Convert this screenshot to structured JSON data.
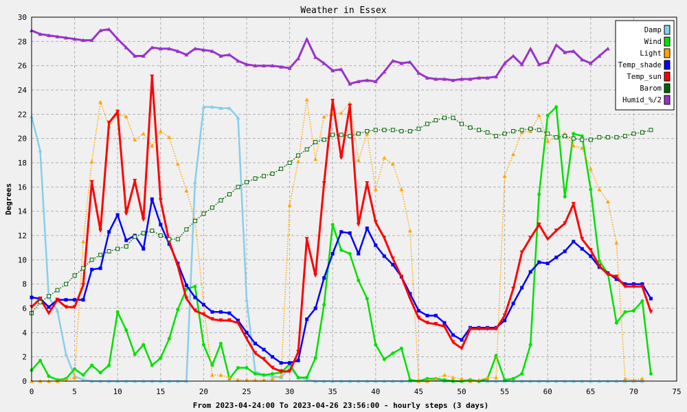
{
  "chart_data": {
    "type": "line",
    "title": "Weather in Essex",
    "xlabel": "From 2023-04-24:00 To 2023-04-26 23:56:00 - hourly steps (3 days)",
    "ylabel": "Degrees",
    "xlim": [
      0,
      75
    ],
    "ylim": [
      0,
      30
    ],
    "x_ticks": [
      "0",
      "5",
      "10",
      "15",
      "20",
      "25",
      "30",
      "35",
      "40",
      "45",
      "50",
      "55",
      "60",
      "65",
      "70",
      "75"
    ],
    "y_ticks": [
      "0",
      "2",
      "4",
      "6",
      "8",
      "10",
      "12",
      "14",
      "16",
      "18",
      "20",
      "22",
      "24",
      "26",
      "28",
      "30"
    ],
    "grid": true,
    "legend_position": "top-right",
    "series": [
      {
        "name": "Damp",
        "color": "#87ceeb",
        "marker": "triangle",
        "style": "solid",
        "width": 2.5,
        "values": [
          21.8,
          19,
          6.9,
          5.8,
          2.2,
          0.4,
          0.1,
          0,
          0,
          0,
          0,
          0,
          0,
          0,
          0,
          0,
          0,
          0,
          0,
          16.4,
          22.6,
          22.6,
          22.5,
          22.5,
          21.7,
          6.7,
          0.8,
          0.5,
          0.4,
          0.3,
          1.1,
          0.3,
          0.1,
          0,
          0,
          0,
          0,
          0,
          0,
          0,
          0,
          0,
          0,
          0,
          0,
          0,
          0,
          0.1,
          0,
          0,
          0,
          0.1,
          0,
          0,
          0,
          0,
          0,
          0,
          0,
          0,
          0,
          0,
          0,
          0,
          0,
          0,
          0,
          0,
          0,
          0,
          0,
          0
        ]
      },
      {
        "name": "Wind",
        "color": "#00e000",
        "marker": "circle",
        "style": "solid",
        "width": 2.5,
        "values": [
          0.9,
          1.7,
          0.4,
          0.1,
          0.2,
          1,
          0.5,
          1.3,
          0.7,
          1.3,
          5.7,
          4.2,
          2.2,
          3,
          1.3,
          1.9,
          3.5,
          5.9,
          7.6,
          7.8,
          3,
          1.3,
          3.1,
          0.2,
          1.1,
          1.1,
          0.6,
          0.5,
          0.6,
          0.7,
          1.4,
          0.3,
          0.3,
          1.9,
          6.3,
          12.9,
          10.8,
          10.5,
          8.3,
          6.8,
          3,
          1.8,
          2.3,
          2.7,
          0.1,
          0,
          0.2,
          0.2,
          0.1,
          0,
          0,
          0.1,
          0,
          0.2,
          2.1,
          0.1,
          0.2,
          0.6,
          3,
          15.4,
          21.9,
          22.6,
          15.2,
          20.4,
          20.2,
          15.8,
          9.9,
          8.9,
          4.8,
          5.7,
          5.8,
          6.6,
          0.6
        ]
      },
      {
        "name": "Light",
        "color": "#ffa500",
        "marker": "triangle",
        "style": "dotted",
        "width": 1.5,
        "values": [
          0,
          0,
          0,
          0,
          0.1,
          0.3,
          11.5,
          18.1,
          23,
          21,
          22,
          21.8,
          19.9,
          20.4,
          19.4,
          20.6,
          20.1,
          17.9,
          15.7,
          13.3,
          6.3,
          0.5,
          0.5,
          0.3,
          0.1,
          0.1,
          0.1,
          0.1,
          0.2,
          0.4,
          14.5,
          18.1,
          23.2,
          18.3,
          21.8,
          22,
          22.1,
          22.9,
          18.2,
          20.4,
          15.8,
          18.4,
          17.9,
          15.8,
          12.4,
          0,
          0,
          0.2,
          0.5,
          0.3,
          0.2,
          0,
          0.1,
          0.3,
          0.3,
          16.9,
          18.7,
          20.5,
          20.6,
          21.9,
          19.8,
          20.1,
          20.4,
          19.4,
          19.2,
          17.5,
          15.8,
          14.8,
          11.4,
          0.2,
          0.1,
          0.2
        ]
      },
      {
        "name": "Temp_shade",
        "color": "#0000ff",
        "marker": "square",
        "style": "solid",
        "width": 2.5,
        "values": [
          6.9,
          6.8,
          6.1,
          6.7,
          6.7,
          6.7,
          6.7,
          9.2,
          9.3,
          12.3,
          13.7,
          11.6,
          12,
          10.9,
          15,
          12.9,
          11.3,
          9.7,
          7.9,
          6.9,
          6.3,
          5.7,
          5.7,
          5.6,
          5,
          4,
          3.1,
          2.6,
          2,
          1.5,
          1.5,
          1.7,
          5.1,
          6,
          8.5,
          10.5,
          12.3,
          12.2,
          10.5,
          12.6,
          11.2,
          10.3,
          9.6,
          8.6,
          7.2,
          5.8,
          5.4,
          5.4,
          4.8,
          3.8,
          3.4,
          4.4,
          4.4,
          4.4,
          4.4,
          5,
          6.4,
          7.7,
          9,
          9.8,
          9.7,
          10.2,
          10.7,
          11.5,
          10.9,
          10.3,
          9.4,
          8.9,
          8.4,
          8,
          8,
          8,
          6.8
        ]
      },
      {
        "name": "Temp_sun",
        "color": "#ff0000",
        "marker": "triangle-down",
        "style": "solid",
        "width": 3,
        "values": [
          6.1,
          6.8,
          5.6,
          6.7,
          6.1,
          6.1,
          7.9,
          16.4,
          12.4,
          21.3,
          22.2,
          13.8,
          16.5,
          13.3,
          25.1,
          14.9,
          11.5,
          9.5,
          6.8,
          5.8,
          5.5,
          5.1,
          5,
          5,
          4.8,
          3.5,
          2.3,
          1.8,
          1.1,
          0.8,
          0.8,
          2.4,
          11.7,
          8.7,
          16.3,
          23.1,
          18.4,
          22.7,
          12.9,
          16.3,
          13.1,
          11.8,
          10.1,
          8.6,
          6.8,
          5.2,
          4.8,
          4.7,
          4.5,
          3.2,
          2.7,
          4.3,
          4.3,
          4.3,
          4.3,
          5.4,
          7.6,
          10.6,
          11.8,
          12.9,
          11.7,
          12.4,
          13,
          14.6,
          11.7,
          10.8,
          9.5,
          8.8,
          8.6,
          7.8,
          7.8,
          7.8,
          5.7
        ]
      },
      {
        "name": "Barom",
        "color": "#006400",
        "marker": "open-square",
        "style": "dotted",
        "width": 1.5,
        "values": [
          5.6,
          6.5,
          7,
          7.5,
          8,
          8.7,
          9.3,
          10,
          10.4,
          10.7,
          10.9,
          11.1,
          11.9,
          12.2,
          12.4,
          12,
          11.7,
          11.7,
          12.5,
          13.2,
          13.8,
          14.3,
          14.9,
          15.4,
          16,
          16.4,
          16.7,
          16.9,
          17.1,
          17.5,
          18,
          18.6,
          19.1,
          19.7,
          19.9,
          20.3,
          20.3,
          20.2,
          20.4,
          20.6,
          20.7,
          20.7,
          20.7,
          20.6,
          20.6,
          20.8,
          21.2,
          21.5,
          21.7,
          21.7,
          21.2,
          20.9,
          20.7,
          20.5,
          20.2,
          20.4,
          20.6,
          20.7,
          20.8,
          20.7,
          20.4,
          20.1,
          20.2,
          20,
          19.9,
          19.9,
          20.1,
          20.1,
          20.1,
          20.2,
          20.4,
          20.5,
          20.7
        ]
      },
      {
        "name": "Humid_%/2",
        "color": "#9932cc",
        "marker": "triangle",
        "style": "solid",
        "width": 3,
        "values": [
          28.9,
          28.6,
          28.5,
          28.4,
          28.3,
          28.2,
          28.1,
          28.1,
          28.9,
          29,
          28.2,
          27.5,
          26.8,
          26.8,
          27.5,
          27.4,
          27.4,
          27.2,
          26.9,
          27.4,
          27.3,
          27.2,
          26.8,
          26.9,
          26.4,
          26.1,
          26,
          26,
          26,
          25.9,
          25.8,
          26.6,
          28.2,
          26.7,
          26.2,
          25.6,
          25.7,
          24.5,
          24.7,
          24.8,
          24.7,
          25.5,
          26.4,
          26.2,
          26.3,
          25.4,
          25,
          24.9,
          24.9,
          24.8,
          24.9,
          24.9,
          25,
          25,
          25.1,
          26.2,
          26.8,
          26.1,
          27.4,
          26.1,
          26.3,
          27.7,
          27.1,
          27.2,
          26.5,
          26.2,
          26.8,
          27.4
        ]
      }
    ]
  }
}
